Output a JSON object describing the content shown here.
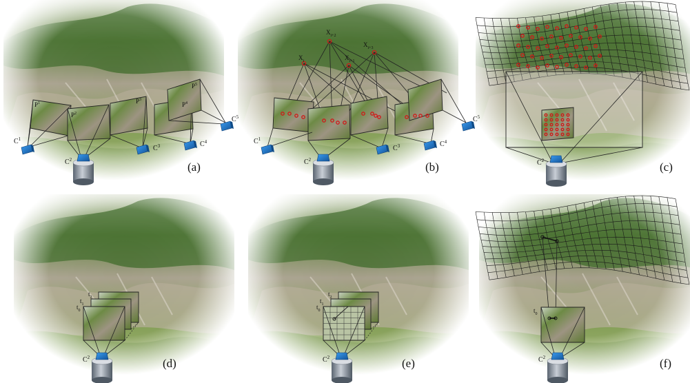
{
  "panels": [
    {
      "id": "a",
      "label": "(a)"
    },
    {
      "id": "b",
      "label": "(b)"
    },
    {
      "id": "c",
      "label": "(c)"
    },
    {
      "id": "d",
      "label": "(d)"
    },
    {
      "id": "e",
      "label": "(e)"
    },
    {
      "id": "f",
      "label": "(f)"
    }
  ],
  "cameras": {
    "c1": {
      "base": "C",
      "sup": "1"
    },
    "c2": {
      "base": "C",
      "sup": "2"
    },
    "c3": {
      "base": "C",
      "sup": "3"
    },
    "c4": {
      "base": "C",
      "sup": "4"
    },
    "c5": {
      "base": "C",
      "sup": "5"
    }
  },
  "image_planes": {
    "p1": {
      "base": "P",
      "sup": "1"
    },
    "p2": {
      "base": "P",
      "sup": "2"
    },
    "p3": {
      "base": "P",
      "sup": "3"
    },
    "p4": {
      "base": "P",
      "sup": "4"
    },
    "p5": {
      "base": "P",
      "sup": "5"
    }
  },
  "points_3d": {
    "xi": {
      "base": "X",
      "sub": "i"
    },
    "xi2": {
      "base": "X",
      "sub": "i+2"
    },
    "xi1": {
      "base": "X",
      "sub": "i+1"
    },
    "xi3": {
      "base": "X",
      "sub": "i+3"
    }
  },
  "time_labels": {
    "t0": {
      "base": "t",
      "sub": "0"
    },
    "t1": {
      "base": "t",
      "sub": "1"
    },
    "t2": {
      "base": "t",
      "sub": "2"
    }
  },
  "colors": {
    "feature_points": "#d01818",
    "camera_body": "#1f74c8",
    "cylinder": "#7c8794",
    "background_scene": "#8ea85f"
  }
}
